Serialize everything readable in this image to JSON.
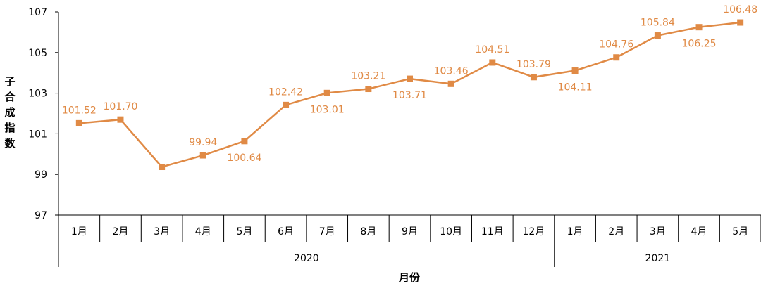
{
  "chart_data": {
    "type": "line",
    "xlabel": "月份",
    "ylabel": "子合成指数",
    "ylim": [
      97,
      107
    ],
    "yticks": [
      97,
      99,
      101,
      103,
      105,
      107
    ],
    "years": [
      {
        "label": "2020",
        "count": 12
      },
      {
        "label": "2021",
        "count": 5
      }
    ],
    "categories": [
      "1月",
      "2月",
      "3月",
      "4月",
      "5月",
      "6月",
      "7月",
      "8月",
      "9月",
      "10月",
      "11月",
      "12月",
      "1月",
      "2月",
      "3月",
      "4月",
      "5月"
    ],
    "values": [
      101.52,
      101.7,
      99.37,
      99.94,
      100.64,
      102.42,
      103.01,
      103.21,
      103.71,
      103.46,
      104.51,
      103.79,
      104.11,
      104.76,
      105.84,
      106.25,
      106.48
    ],
    "labels": [
      "101.52",
      "101.70",
      "",
      "99.94",
      "100.64",
      "102.42",
      "103.01",
      "103.21",
      "103.71",
      "103.46",
      "104.51",
      "103.79",
      "104.11",
      "104.76",
      "105.84",
      "106.25",
      "106.48"
    ],
    "label_position": [
      "above",
      "above",
      "above",
      "above",
      "below",
      "above",
      "below",
      "above",
      "below",
      "above",
      "above",
      "above",
      "below",
      "above",
      "above",
      "below",
      "above"
    ],
    "line_color": "#E08A45",
    "grid": false
  }
}
